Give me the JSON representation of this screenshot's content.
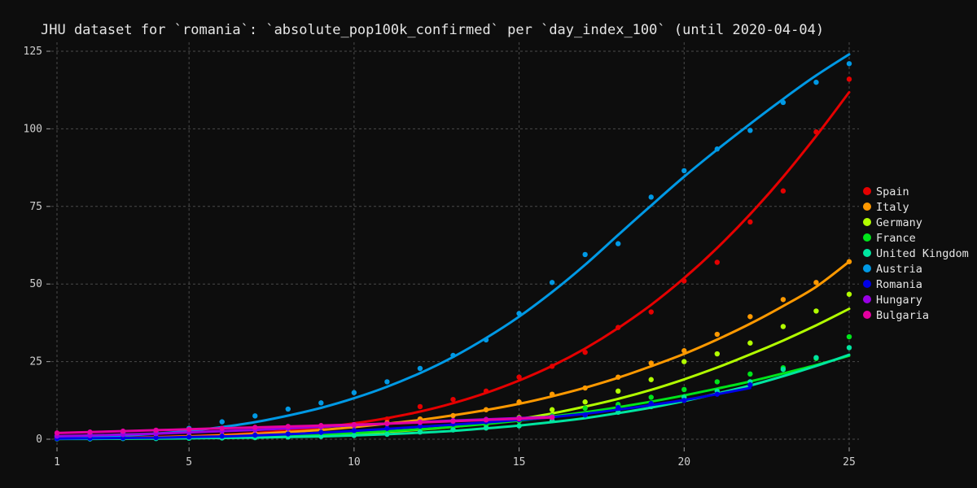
{
  "chart_data": {
    "type": "scatter",
    "title": "JHU dataset for `romania`: `absolute_pop100k_confirmed` per `day_index_100` (until 2020-04-04)",
    "xlabel": "",
    "ylabel": "",
    "xlim": [
      1,
      25
    ],
    "ylim": [
      0,
      125
    ],
    "x_ticks": [
      1,
      5,
      10,
      15,
      20,
      25
    ],
    "y_ticks": [
      0,
      25,
      50,
      75,
      100,
      125
    ],
    "grid": true,
    "legend_position": "right",
    "series": [
      {
        "name": "Spain",
        "color": "#e50000",
        "x": [
          1,
          2,
          3,
          4,
          5,
          6,
          7,
          8,
          9,
          10,
          11,
          12,
          13,
          14,
          15,
          16,
          17,
          18,
          19,
          20,
          21,
          22,
          23,
          24,
          25
        ],
        "values": [
          0.5,
          0.5,
          0.6,
          0.6,
          0.8,
          1.2,
          1.6,
          2.2,
          3.5,
          4.5,
          6.5,
          10.5,
          12.8,
          15.5,
          20,
          23.5,
          28,
          36,
          41,
          51,
          57,
          70,
          80,
          99,
          116
        ],
        "fit": [
          0.3,
          0.4,
          0.5,
          0.7,
          1.0,
          1.4,
          2.0,
          2.8,
          3.8,
          5.1,
          6.8,
          8.9,
          11.6,
          14.9,
          18.9,
          23.6,
          29.2,
          35.8,
          43.3,
          51.9,
          61.6,
          72.5,
          84.5,
          97.7,
          111.8
        ]
      },
      {
        "name": "Italy",
        "color": "#ff9900",
        "x": [
          1,
          2,
          3,
          4,
          5,
          6,
          7,
          8,
          9,
          10,
          11,
          12,
          13,
          14,
          15,
          16,
          17,
          18,
          19,
          20,
          21,
          22,
          23,
          24,
          25
        ],
        "values": [
          0.3,
          0.4,
          0.5,
          0.7,
          1.0,
          1.3,
          1.8,
          2.4,
          3.2,
          4.2,
          5.3,
          6.5,
          7.6,
          9.5,
          12,
          14.5,
          16.5,
          20,
          24.5,
          28.5,
          33.8,
          39.5,
          45,
          50.5,
          57.2
        ],
        "fit": [
          0.2,
          0.3,
          0.4,
          0.6,
          0.9,
          1.2,
          1.7,
          2.3,
          3.0,
          3.9,
          5.0,
          6.2,
          7.7,
          9.4,
          11.4,
          13.8,
          16.6,
          19.8,
          23.5,
          27.5,
          32.1,
          37.2,
          42.9,
          49.1,
          57.2
        ]
      },
      {
        "name": "Germany",
        "color": "#b2ff00",
        "x": [
          1,
          2,
          3,
          4,
          5,
          6,
          7,
          8,
          9,
          10,
          11,
          12,
          13,
          14,
          15,
          16,
          17,
          18,
          19,
          20,
          21,
          22,
          23,
          24,
          25
        ],
        "values": [
          0.2,
          0.2,
          0.3,
          0.4,
          0.5,
          0.7,
          0.9,
          1.2,
          1.6,
          2.1,
          2.7,
          3.5,
          4.5,
          5.8,
          7.0,
          9.5,
          12,
          15.5,
          19.2,
          25,
          27.5,
          31,
          36.3,
          41.3,
          46.7
        ],
        "fit": [
          0.1,
          0.2,
          0.2,
          0.3,
          0.4,
          0.6,
          0.8,
          1.0,
          1.4,
          1.8,
          2.4,
          3.1,
          4.0,
          5.1,
          6.5,
          8.3,
          10.5,
          13.0,
          15.9,
          19.3,
          23.1,
          27.3,
          31.8,
          36.7,
          42.0
        ]
      },
      {
        "name": "France",
        "color": "#00e51a",
        "x": [
          1,
          2,
          3,
          4,
          5,
          6,
          7,
          8,
          9,
          10,
          11,
          12,
          13,
          14,
          15,
          16,
          17,
          18,
          19,
          20,
          21,
          22,
          23,
          24,
          25
        ],
        "values": [
          0.3,
          0.2,
          0.3,
          0.4,
          0.5,
          0.7,
          0.9,
          1.2,
          1.5,
          2.0,
          2.3,
          3.0,
          3.8,
          4.5,
          5.8,
          7.5,
          10,
          11.2,
          13.5,
          16,
          18.5,
          21,
          23,
          26,
          33
        ],
        "fit": [
          0.2,
          0.2,
          0.3,
          0.4,
          0.5,
          0.7,
          0.9,
          1.2,
          1.6,
          2.0,
          2.6,
          3.2,
          4.0,
          4.9,
          6.0,
          7.3,
          8.7,
          10.3,
          12.1,
          14.1,
          16.3,
          18.6,
          21.2,
          23.9,
          26.9
        ]
      },
      {
        "name": "United Kingdom",
        "color": "#00e5a0",
        "x": [
          1,
          2,
          3,
          4,
          5,
          6,
          7,
          8,
          9,
          10,
          11,
          12,
          13,
          14,
          15,
          16,
          17,
          18,
          19,
          20,
          21,
          22,
          23,
          24,
          25
        ],
        "values": [
          0.1,
          0.1,
          0.2,
          0.2,
          0.3,
          0.4,
          0.5,
          0.7,
          0.9,
          1.2,
          1.6,
          2.3,
          3.0,
          3.6,
          4.3,
          6.0,
          7.8,
          8.7,
          10.5,
          13.5,
          15.5,
          18.5,
          22.5,
          26.3,
          29.5
        ],
        "fit": [
          0.1,
          0.1,
          0.2,
          0.2,
          0.3,
          0.4,
          0.5,
          0.7,
          0.9,
          1.2,
          1.6,
          2.1,
          2.7,
          3.5,
          4.4,
          5.5,
          6.8,
          8.4,
          10.2,
          12.3,
          14.7,
          17.3,
          20.3,
          23.6,
          27.2
        ]
      },
      {
        "name": "Austria",
        "color": "#0099e5",
        "x": [
          1,
          2,
          3,
          4,
          5,
          6,
          7,
          8,
          9,
          10,
          11,
          12,
          13,
          14,
          15,
          16,
          17,
          18,
          19,
          20,
          21,
          22,
          23,
          24,
          25
        ],
        "values": [
          1.0,
          1.5,
          2.2,
          2.5,
          3.5,
          5.6,
          7.5,
          9.7,
          11.7,
          15,
          18.5,
          22.8,
          27,
          32,
          40.5,
          50.5,
          59.5,
          63,
          78,
          86.5,
          93.5,
          99.5,
          108.5,
          115,
          121
        ],
        "fit": [
          0.5,
          0.8,
          1.2,
          1.8,
          2.7,
          3.9,
          5.5,
          7.6,
          10.1,
          13.2,
          16.9,
          21.3,
          26.5,
          32.6,
          39.5,
          47.4,
          56.2,
          65.8,
          75.3,
          84.6,
          93.3,
          101.6,
          109.6,
          117.2,
          124.0
        ]
      },
      {
        "name": "Romania",
        "color": "#0000e5",
        "x": [
          1,
          2,
          3,
          4,
          5,
          6,
          7,
          8,
          9,
          10,
          11,
          12,
          13,
          14,
          15,
          16,
          17,
          18,
          19,
          20,
          21,
          22
        ],
        "values": [
          0.2,
          0.3,
          0.4,
          0.5,
          0.7,
          1.0,
          1.3,
          1.7,
          2.2,
          2.8,
          3.5,
          4.2,
          4.9,
          5.6,
          6.3,
          7.0,
          7.8,
          10.2,
          11.5,
          12.5,
          14.5,
          17.5
        ],
        "fit": [
          0.2,
          0.3,
          0.4,
          0.5,
          0.7,
          0.9,
          1.2,
          1.6,
          2.1,
          2.7,
          3.3,
          4.0,
          4.7,
          5.4,
          6.2,
          7.1,
          8.2,
          9.5,
          11.0,
          12.6,
          14.5,
          16.5
        ]
      },
      {
        "name": "Hungary",
        "color": "#9900e5",
        "x": [
          1,
          2,
          3,
          4,
          5,
          6,
          7,
          8,
          9,
          10,
          11,
          12,
          13,
          14,
          15,
          16
        ],
        "values": [
          1.0,
          1.2,
          1.5,
          1.8,
          2.2,
          2.6,
          3.0,
          3.5,
          4.0,
          4.5,
          5.0,
          5.5,
          6.0,
          6.4,
          6.8,
          7.2
        ],
        "fit": [
          1.0,
          1.2,
          1.5,
          1.8,
          2.2,
          2.6,
          3.0,
          3.5,
          4.0,
          4.5,
          5.0,
          5.5,
          6.0,
          6.4,
          6.8,
          7.2
        ]
      },
      {
        "name": "Bulgaria",
        "color": "#e500a0",
        "x": [
          1,
          2,
          3,
          4,
          5,
          6,
          7,
          8,
          9,
          10,
          11,
          12,
          13,
          14,
          15,
          16
        ],
        "values": [
          2.0,
          2.3,
          2.6,
          2.9,
          3.2,
          3.5,
          3.8,
          4.1,
          4.4,
          4.7,
          5.0,
          5.4,
          5.8,
          6.2,
          6.6,
          7.0
        ],
        "fit": [
          2.0,
          2.3,
          2.6,
          2.9,
          3.2,
          3.5,
          3.8,
          4.1,
          4.4,
          4.7,
          5.0,
          5.4,
          5.8,
          6.2,
          6.6,
          7.0
        ]
      }
    ]
  }
}
